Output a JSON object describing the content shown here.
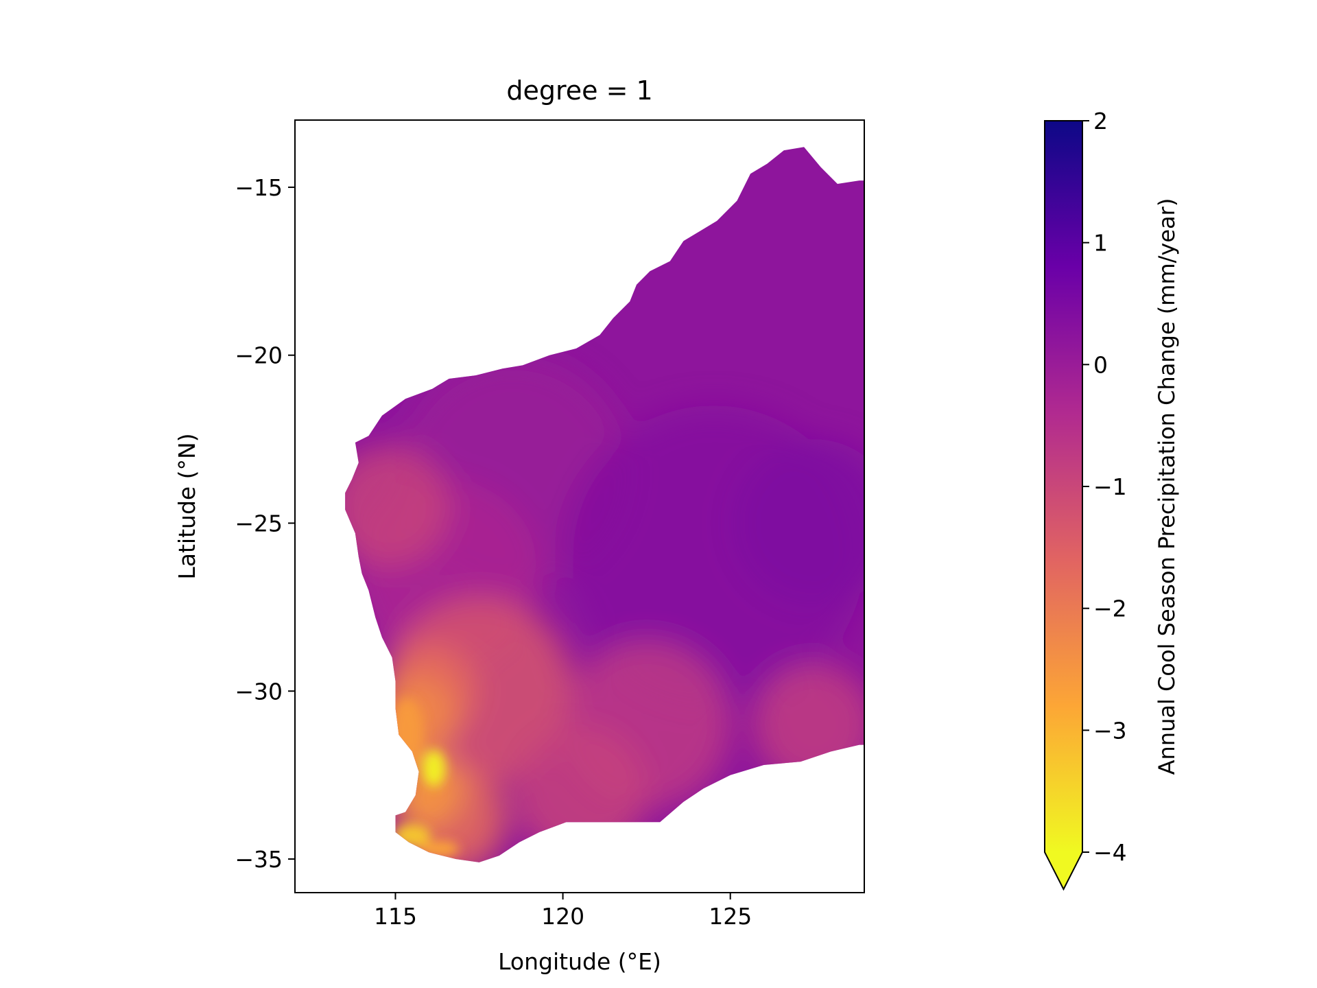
{
  "chart_data": {
    "type": "heatmap",
    "title": "degree = 1",
    "xlabel": "Longitude (°E)",
    "ylabel": "Latitude (°N)",
    "xlim": [
      112.0,
      129.0
    ],
    "ylim": [
      -36.0,
      -13.0
    ],
    "xticks": [
      115,
      120,
      125
    ],
    "xtick_labels": [
      "115",
      "120",
      "125"
    ],
    "yticks": [
      -15,
      -20,
      -25,
      -30,
      -35
    ],
    "ytick_labels": [
      "−15",
      "−20",
      "−25",
      "−30",
      "−35"
    ],
    "grid": false,
    "colormap": "plasma_r",
    "colorbar": {
      "label": "Annual Cool Season Precipitation Change (mm/year)",
      "range": [
        -4,
        2
      ],
      "ticks": [
        2,
        1,
        0,
        -1,
        -2,
        -3,
        -4
      ],
      "tick_labels": [
        "2",
        "1",
        "0",
        "−1",
        "−2",
        "−3",
        "−4"
      ],
      "extend": "min"
    },
    "color_stops": [
      "#0d0887",
      "#6a00a8",
      "#b12a90",
      "#e16462",
      "#fca636",
      "#f0f921"
    ],
    "region_values": {
      "interior_and_north": 0.2,
      "central_west": -0.3,
      "far_west_coast": -0.9,
      "southwest_inland": -1.3,
      "southwest_coast": -2.6,
      "peak_west_coast_lon116_lat-32": -3.9,
      "southwest_cape": -3.3,
      "south_coast": -1.8
    },
    "coastline_lonlat": [
      [
        128.85,
        -14.8
      ],
      [
        128.2,
        -14.9
      ],
      [
        127.7,
        -14.4
      ],
      [
        127.2,
        -13.8
      ],
      [
        126.6,
        -13.9
      ],
      [
        126.1,
        -14.3
      ],
      [
        125.6,
        -14.6
      ],
      [
        125.2,
        -15.4
      ],
      [
        124.6,
        -16.0
      ],
      [
        124.1,
        -16.3
      ],
      [
        123.6,
        -16.6
      ],
      [
        123.2,
        -17.2
      ],
      [
        122.6,
        -17.5
      ],
      [
        122.2,
        -17.9
      ],
      [
        122.0,
        -18.4
      ],
      [
        121.5,
        -18.9
      ],
      [
        121.1,
        -19.4
      ],
      [
        120.4,
        -19.8
      ],
      [
        119.6,
        -20.0
      ],
      [
        118.8,
        -20.3
      ],
      [
        118.2,
        -20.4
      ],
      [
        117.4,
        -20.6
      ],
      [
        116.6,
        -20.7
      ],
      [
        116.1,
        -21.0
      ],
      [
        115.3,
        -21.3
      ],
      [
        114.6,
        -21.8
      ],
      [
        114.2,
        -22.4
      ],
      [
        113.8,
        -22.6
      ],
      [
        113.9,
        -23.2
      ],
      [
        113.7,
        -23.7
      ],
      [
        113.5,
        -24.1
      ],
      [
        113.5,
        -24.6
      ],
      [
        113.8,
        -25.3
      ],
      [
        113.9,
        -26.0
      ],
      [
        114.0,
        -26.5
      ],
      [
        114.2,
        -27.0
      ],
      [
        114.4,
        -27.8
      ],
      [
        114.6,
        -28.4
      ],
      [
        114.9,
        -29.0
      ],
      [
        115.0,
        -29.7
      ],
      [
        115.0,
        -30.5
      ],
      [
        115.1,
        -31.3
      ],
      [
        115.5,
        -31.8
      ],
      [
        115.7,
        -32.4
      ],
      [
        115.6,
        -33.1
      ],
      [
        115.3,
        -33.6
      ],
      [
        115.0,
        -33.7
      ],
      [
        115.0,
        -34.2
      ],
      [
        115.4,
        -34.5
      ],
      [
        116.0,
        -34.8
      ],
      [
        116.8,
        -35.0
      ],
      [
        117.5,
        -35.1
      ],
      [
        118.1,
        -34.9
      ],
      [
        118.7,
        -34.5
      ],
      [
        119.3,
        -34.2
      ],
      [
        120.1,
        -33.9
      ],
      [
        121.0,
        -33.9
      ],
      [
        121.9,
        -33.9
      ],
      [
        122.9,
        -33.9
      ],
      [
        123.6,
        -33.3
      ],
      [
        124.2,
        -32.9
      ],
      [
        125.0,
        -32.5
      ],
      [
        126.0,
        -32.2
      ],
      [
        127.1,
        -32.1
      ],
      [
        128.0,
        -31.8
      ],
      [
        128.85,
        -31.6
      ]
    ]
  }
}
